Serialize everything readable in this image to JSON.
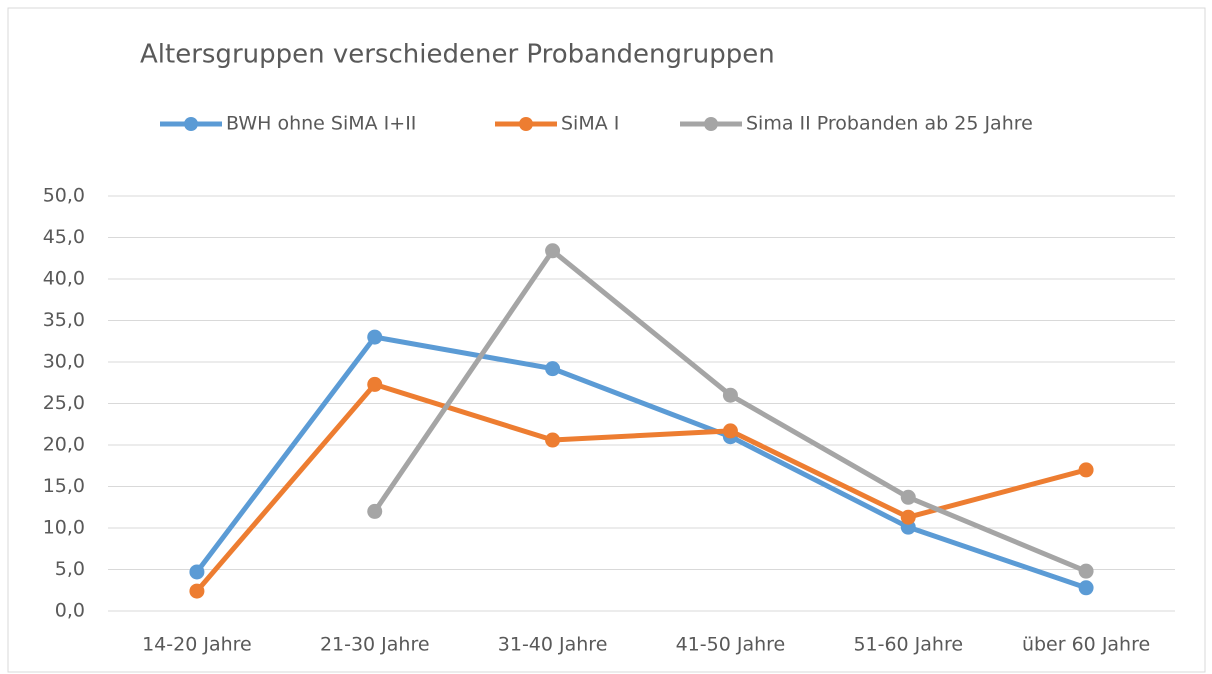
{
  "chart_data": {
    "type": "line",
    "title": "Altersgruppen verschiedener Probandengruppen",
    "categories": [
      "14-20 Jahre",
      "21-30 Jahre",
      "31-40 Jahre",
      "41-50 Jahre",
      "51-60 Jahre",
      "über 60 Jahre"
    ],
    "series": [
      {
        "name": "BWH ohne SiMA I+II",
        "color": "#5b9bd5",
        "values": [
          4.7,
          33.0,
          29.2,
          21.0,
          10.1,
          2.8
        ]
      },
      {
        "name": "SiMA I",
        "color": "#ed7d31",
        "values": [
          2.4,
          27.3,
          20.6,
          21.7,
          11.3,
          17.0
        ]
      },
      {
        "name": "Sima II Probanden ab 25 Jahre",
        "color": "#a5a5a5",
        "values": [
          null,
          12.0,
          43.4,
          26.0,
          13.7,
          4.8
        ]
      }
    ],
    "ylim": [
      0,
      50
    ],
    "yticks": [
      {
        "value": 0,
        "label": "0,0"
      },
      {
        "value": 5,
        "label": "5,0"
      },
      {
        "value": 10,
        "label": "10,0"
      },
      {
        "value": 15,
        "label": "15,0"
      },
      {
        "value": 20,
        "label": "20,0"
      },
      {
        "value": 25,
        "label": "25,0"
      },
      {
        "value": 30,
        "label": "30,0"
      },
      {
        "value": 35,
        "label": "35,0"
      },
      {
        "value": 40,
        "label": "40,0"
      },
      {
        "value": 45,
        "label": "45,0"
      },
      {
        "value": 50,
        "label": "50,0"
      }
    ],
    "grid": true,
    "legend": "top"
  }
}
